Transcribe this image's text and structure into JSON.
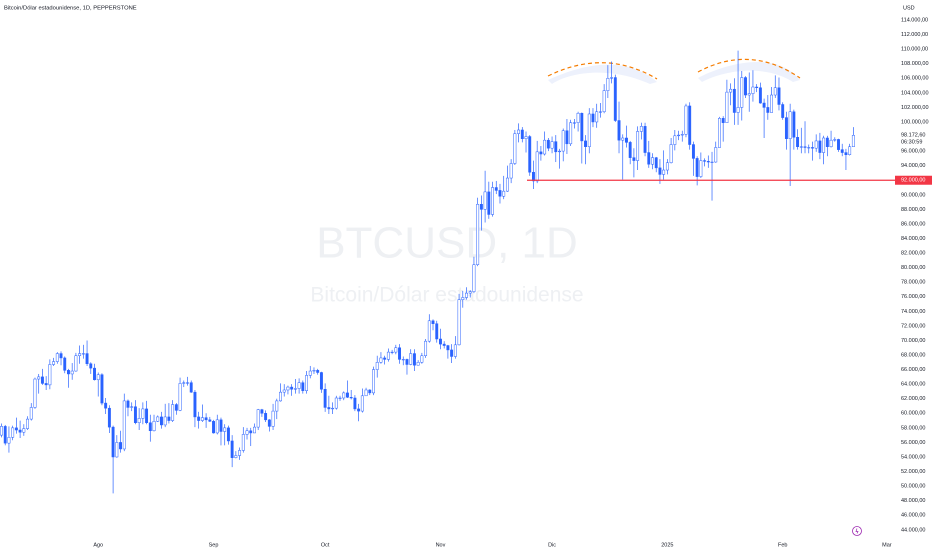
{
  "chart_data": {
    "type": "candlestick",
    "title": "Bitcoin/Dólar estadounidense, 1D, PEPPERSTONE",
    "watermark": "BTCUSD, 1D",
    "watermark_subtitle": "Bitcoin/Dólar estadounidense",
    "currency": "USD",
    "up_color": "#ffffff",
    "down_color": "#2962ff",
    "wick_color": "#2962ff",
    "open": [
      57000,
      58200,
      55900,
      56700,
      58000,
      57700,
      57400,
      57900,
      59200,
      60800,
      64700,
      65000,
      64100,
      63900,
      66700,
      67100,
      68200,
      67600,
      65900,
      65400,
      65800,
      67900,
      68200,
      68200,
      66800,
      66200,
      64600,
      65300,
      61400,
      60700,
      58100,
      54000,
      56000,
      55100,
      61700,
      60800,
      60900,
      58700,
      59300,
      60600,
      58700,
      57600,
      58900,
      59500,
      58400,
      59500,
      59000,
      61200,
      60400,
      64100,
      64200,
      64200,
      62900,
      59500,
      59000,
      59400,
      59100,
      58900,
      57300,
      59100,
      57500,
      58000,
      56200,
      53900,
      54200,
      54900,
      57100,
      57600,
      57300,
      58100,
      60500,
      60000,
      59100,
      58200,
      60300,
      61700,
      62900,
      63200,
      63600,
      63300,
      63400,
      64200,
      63100,
      65200,
      65800,
      65900,
      65600,
      63300,
      60800,
      60600,
      60700,
      62100,
      62100,
      62800,
      62200,
      62100,
      60600,
      60300,
      62400,
      63200,
      62800,
      66000,
      67000,
      67600,
      67400,
      68400,
      68400,
      69000,
      67400,
      67400,
      66700,
      68200,
      66600,
      67000,
      67900,
      69900,
      72700,
      72300,
      70200,
      69500,
      69300,
      68700,
      67800,
      69400,
      75600,
      75900,
      76500,
      76700,
      80400,
      88700,
      88000,
      90400,
      87300,
      91000,
      90600,
      89800,
      90500,
      92300,
      94300,
      98400,
      98900,
      97700,
      98000,
      93100,
      91900,
      95900,
      95600,
      97500,
      96400,
      97300,
      95900,
      96000,
      98800,
      97000,
      99900,
      99900,
      101200,
      97400,
      96600,
      101100,
      100000,
      101400,
      101400,
      104300,
      106000,
      106100,
      100200,
      97500,
      97800,
      97200,
      95100,
      94700,
      98700,
      99400,
      95800,
      94200,
      95100,
      93700,
      92800,
      93400,
      94400,
      96900,
      98100,
      98200,
      98300,
      102200,
      96900,
      95000,
      92500,
      94700,
      94600,
      94500,
      94500,
      96500,
      100500,
      99900,
      104100,
      104500,
      101300,
      102000,
      106100,
      103700,
      103900,
      104800,
      104700,
      102600,
      102000,
      101300,
      103700,
      104700,
      102400,
      100600,
      97700,
      101400,
      97900,
      96600,
      96600,
      96500,
      96500,
      96400,
      97400,
      95800,
      97800,
      96600,
      97500,
      97600,
      96200,
      95800,
      95500,
      96600
    ],
    "high": [
      58600,
      58400,
      58200,
      58300,
      59400,
      59000,
      58500,
      59600,
      61400,
      64900,
      65400,
      66100,
      65100,
      67400,
      67600,
      68400,
      68500,
      67800,
      66100,
      66900,
      68300,
      69300,
      69400,
      70000,
      67000,
      66800,
      65600,
      65500,
      62100,
      61100,
      58300,
      57000,
      57600,
      62700,
      61900,
      61500,
      61800,
      60700,
      61500,
      61700,
      59800,
      59800,
      59700,
      60200,
      61300,
      61400,
      61800,
      61400,
      64900,
      64500,
      65000,
      64500,
      63200,
      60200,
      61200,
      60000,
      59500,
      59100,
      59800,
      59400,
      58500,
      58300,
      57000,
      54800,
      55300,
      58100,
      58000,
      58000,
      58600,
      60600,
      60600,
      60400,
      59200,
      61300,
      62000,
      64100,
      64000,
      63800,
      64000,
      64700,
      64800,
      64500,
      65800,
      66500,
      66300,
      66100,
      65700,
      64100,
      62400,
      61500,
      62400,
      62400,
      63000,
      64500,
      63200,
      62500,
      61300,
      63400,
      63500,
      63300,
      66400,
      67900,
      68400,
      67900,
      68900,
      68700,
      69400,
      69500,
      67800,
      67500,
      68800,
      68800,
      67300,
      68300,
      70200,
      73600,
      72900,
      72700,
      71600,
      69900,
      69400,
      69500,
      70600,
      76400,
      76800,
      77300,
      76900,
      81500,
      89600,
      89900,
      93300,
      91800,
      91800,
      91900,
      91500,
      92600,
      94000,
      94900,
      98900,
      99800,
      99300,
      98700,
      98200,
      94700,
      97400,
      96700,
      98700,
      97800,
      98000,
      98200,
      96300,
      99100,
      100400,
      100300,
      100400,
      101400,
      101300,
      98200,
      101900,
      101900,
      102500,
      102600,
      105200,
      107800,
      108300,
      106500,
      102800,
      98300,
      99500,
      97400,
      96400,
      99400,
      99900,
      99900,
      97400,
      95700,
      95200,
      94900,
      96100,
      94900,
      97800,
      98900,
      98800,
      98800,
      102500,
      102700,
      97300,
      95300,
      95800,
      95000,
      95400,
      95900,
      97300,
      100700,
      100800,
      105800,
      105300,
      106000,
      109800,
      107000,
      106300,
      106800,
      107100,
      105200,
      105400,
      103200,
      103700,
      104800,
      106400,
      106100,
      102700,
      101400,
      102500,
      101700,
      99000,
      99200,
      100100,
      96900,
      97300,
      98300,
      98500,
      98100,
      98100,
      98800,
      97900,
      97700,
      97000,
      96300,
      97000,
      99300
    ],
    "low": [
      56700,
      55600,
      54600,
      56300,
      57200,
      56600,
      56900,
      57700,
      59000,
      60600,
      62700,
      63900,
      63200,
      63300,
      66500,
      66800,
      66600,
      65500,
      63500,
      64600,
      65700,
      66800,
      67500,
      66500,
      65400,
      64500,
      62300,
      61100,
      59900,
      57300,
      49000,
      53900,
      54600,
      54800,
      59600,
      60300,
      58500,
      57700,
      58500,
      58500,
      56100,
      57500,
      58800,
      57900,
      58100,
      58600,
      58800,
      59800,
      60300,
      63600,
      63800,
      62800,
      58100,
      57900,
      58800,
      58000,
      58800,
      57200,
      57100,
      55600,
      55600,
      55700,
      52600,
      53800,
      53600,
      54600,
      56400,
      55500,
      57300,
      57700,
      59500,
      58800,
      57500,
      57700,
      59200,
      61600,
      62300,
      62600,
      62400,
      62700,
      62700,
      62700,
      62700,
      64800,
      65400,
      65300,
      62800,
      60200,
      59900,
      59900,
      60500,
      61700,
      61800,
      62100,
      61900,
      60300,
      58900,
      60100,
      62400,
      62500,
      62500,
      64900,
      66800,
      66700,
      67100,
      68100,
      68100,
      66800,
      66600,
      65300,
      66600,
      65800,
      66600,
      66800,
      67600,
      69700,
      71400,
      69700,
      68800,
      68900,
      67500,
      66900,
      67500,
      69300,
      74500,
      75600,
      75900,
      76500,
      80200,
      85100,
      86200,
      86700,
      87000,
      90100,
      88800,
      89400,
      90400,
      91600,
      94100,
      97200,
      97200,
      95800,
      92600,
      90800,
      91600,
      94700,
      95400,
      96000,
      95700,
      94500,
      93600,
      94600,
      95600,
      96700,
      99100,
      98700,
      94300,
      94200,
      95700,
      99300,
      99200,
      100600,
      101200,
      103300,
      105300,
      100000,
      95700,
      92100,
      96500,
      94200,
      92400,
      93400,
      97600,
      95300,
      93700,
      93500,
      93100,
      91500,
      92100,
      92800,
      94300,
      96100,
      97500,
      97300,
      97900,
      96200,
      92600,
      91300,
      92300,
      93900,
      93700,
      89200,
      94400,
      96500,
      97300,
      99900,
      102300,
      99600,
      99600,
      100200,
      103300,
      101400,
      102800,
      104100,
      102500,
      97800,
      100300,
      101300,
      103300,
      101600,
      100300,
      96200,
      91200,
      96200,
      96200,
      95700,
      95700,
      95700,
      94700,
      95900,
      94900,
      94200,
      95300,
      96500,
      97300,
      95900,
      95300,
      93400,
      95400,
      96600
    ],
    "close": [
      58200,
      55900,
      56700,
      58000,
      57700,
      57400,
      57900,
      59200,
      60800,
      64700,
      65000,
      64100,
      63900,
      66700,
      67100,
      68200,
      67600,
      65900,
      65400,
      65800,
      67900,
      68200,
      68200,
      66800,
      66200,
      64600,
      65300,
      61400,
      60700,
      58100,
      54000,
      56000,
      55100,
      61700,
      60800,
      60900,
      58700,
      59300,
      60600,
      58700,
      57600,
      58900,
      59500,
      58400,
      59500,
      59000,
      61200,
      60400,
      64100,
      64200,
      64200,
      62900,
      59500,
      59000,
      59400,
      59100,
      58900,
      57300,
      59100,
      57500,
      58000,
      56200,
      53900,
      54200,
      54900,
      57100,
      57600,
      57300,
      58100,
      60500,
      60000,
      59100,
      58200,
      60300,
      61700,
      62900,
      63200,
      63600,
      63300,
      63400,
      64200,
      63100,
      65200,
      65800,
      65900,
      65600,
      63300,
      60800,
      60600,
      60700,
      62100,
      62100,
      62800,
      62200,
      62100,
      60600,
      60300,
      62400,
      63200,
      62800,
      66000,
      67000,
      67600,
      67400,
      68400,
      68400,
      69000,
      67400,
      67400,
      66700,
      68200,
      66600,
      67000,
      67900,
      69900,
      72700,
      72300,
      70200,
      69500,
      69300,
      68700,
      67800,
      69400,
      75600,
      75900,
      76500,
      76700,
      80400,
      88700,
      88000,
      90400,
      87300,
      91000,
      90600,
      89800,
      90500,
      92300,
      94300,
      98400,
      98900,
      97700,
      98000,
      93100,
      91900,
      95900,
      95600,
      97500,
      96400,
      97300,
      95900,
      96000,
      98800,
      97000,
      99900,
      99900,
      101200,
      97400,
      96600,
      101100,
      100000,
      101400,
      101400,
      104300,
      106000,
      106100,
      100200,
      97500,
      97800,
      97200,
      95100,
      94700,
      98700,
      99400,
      95800,
      94200,
      95100,
      93700,
      92800,
      93400,
      94400,
      96900,
      98100,
      98200,
      98300,
      102200,
      96900,
      95000,
      92500,
      94700,
      94600,
      94500,
      94500,
      96500,
      100500,
      99900,
      104100,
      104500,
      101300,
      102000,
      106100,
      103700,
      103900,
      104800,
      104700,
      102600,
      102000,
      101300,
      103700,
      104700,
      102400,
      100600,
      97700,
      101400,
      97900,
      96600,
      96600,
      96500,
      96500,
      96400,
      97400,
      95800,
      97800,
      96600,
      97500,
      97600,
      96200,
      95800,
      95500,
      96600,
      98172.6
    ],
    "xticks": [
      {
        "value": 26,
        "label": "Ago"
      },
      {
        "value": 57,
        "label": "Sep"
      },
      {
        "value": 87,
        "label": "Oct"
      },
      {
        "value": 118,
        "label": "Nov"
      },
      {
        "value": 148,
        "label": "Dic"
      },
      {
        "value": 179,
        "label": "2025"
      },
      {
        "value": 210,
        "label": "Feb"
      },
      {
        "value": 238,
        "label": "Mar"
      }
    ],
    "ylim": [
      42600,
      115650
    ],
    "yticks": [
      {
        "value": 44000,
        "label": "44.000,00"
      },
      {
        "value": 46000,
        "label": "46.000,00"
      },
      {
        "value": 48000,
        "label": "48.000,00"
      },
      {
        "value": 50000,
        "label": "50.000,00"
      },
      {
        "value": 52000,
        "label": "52.000,00"
      },
      {
        "value": 54000,
        "label": "54.000,00"
      },
      {
        "value": 56000,
        "label": "56.000,00"
      },
      {
        "value": 58000,
        "label": "58.000,00"
      },
      {
        "value": 60000,
        "label": "60.000,00"
      },
      {
        "value": 62000,
        "label": "62.000,00"
      },
      {
        "value": 64000,
        "label": "64.000,00"
      },
      {
        "value": 66000,
        "label": "66.000,00"
      },
      {
        "value": 68000,
        "label": "68.000,00"
      },
      {
        "value": 70000,
        "label": "70.000,00"
      },
      {
        "value": 72000,
        "label": "72.000,00"
      },
      {
        "value": 74000,
        "label": "74.000,00"
      },
      {
        "value": 76000,
        "label": "76.000,00"
      },
      {
        "value": 78000,
        "label": "78.000,00"
      },
      {
        "value": 80000,
        "label": "80.000,00"
      },
      {
        "value": 82000,
        "label": "82.000,00"
      },
      {
        "value": 84000,
        "label": "84.000,00"
      },
      {
        "value": 86000,
        "label": "86.000,00"
      },
      {
        "value": 88000,
        "label": "88.000,00"
      },
      {
        "value": 90000,
        "label": "90.000,00"
      },
      {
        "value": 94000,
        "label": "94.000,00"
      },
      {
        "value": 96000,
        "label": "96.000,00"
      },
      {
        "value": 100000,
        "label": "100.000,00"
      },
      {
        "value": 102000,
        "label": "102.000,00"
      },
      {
        "value": 104000,
        "label": "104.000,00"
      },
      {
        "value": 106000,
        "label": "106.000,00"
      },
      {
        "value": 108000,
        "label": "108.000,00"
      },
      {
        "value": 110000,
        "label": "110.000,00"
      },
      {
        "value": 112000,
        "label": "112.000,00"
      },
      {
        "value": 114000,
        "label": "114.000,00"
      }
    ],
    "hline": {
      "value": 92000,
      "label": "92.000,00",
      "color": "#f23645"
    },
    "last_price": {
      "value": 98172.6,
      "label": "98.172,60"
    },
    "countdown": "06:30:59"
  }
}
